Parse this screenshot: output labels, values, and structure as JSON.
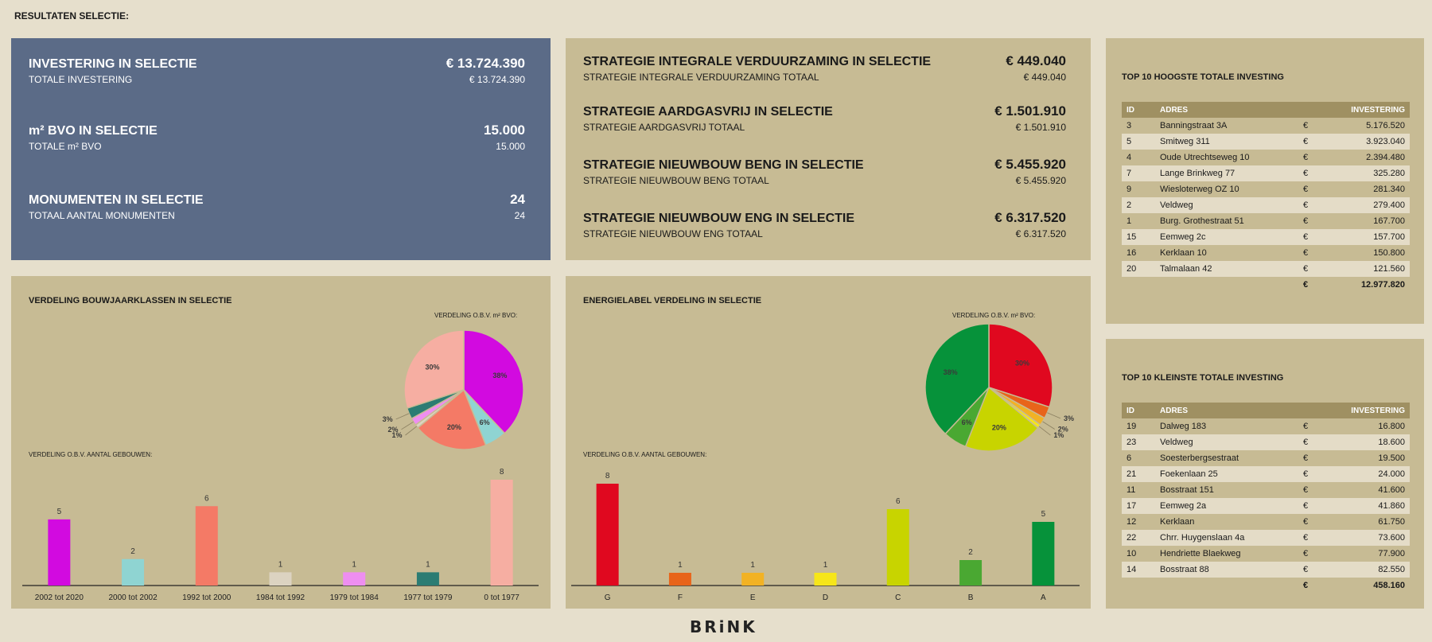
{
  "page_title": "RESULTATEN SELECTIE:",
  "kpi_panel": [
    {
      "label": "INVESTERING IN SELECTIE",
      "value": "€ 13.724.390",
      "sub_label": "TOTALE INVESTERING",
      "sub_value": "€ 13.724.390"
    },
    {
      "label": "m² BVO IN SELECTIE",
      "value": "15.000",
      "sub_label": "TOTALE m² BVO",
      "sub_value": "15.000"
    },
    {
      "label": "MONUMENTEN IN SELECTIE",
      "value": "24",
      "sub_label": "TOTAAL AANTAL MONUMENTEN",
      "sub_value": "24"
    }
  ],
  "strategy_panel": [
    {
      "label": "STRATEGIE INTEGRALE VERDUURZAMING IN SELECTIE",
      "value": "€ 449.040",
      "sub_label": "STRATEGIE INTEGRALE VERDUURZAMING TOTAAL",
      "sub_value": "€ 449.040"
    },
    {
      "label": "STRATEGIE AARDGASVRIJ IN SELECTIE",
      "value": "€ 1.501.910",
      "sub_label": "STRATEGIE AARDGASVRIJ TOTAAL",
      "sub_value": "€ 1.501.910"
    },
    {
      "label": "STRATEGIE NIEUWBOUW BENG IN SELECTIE",
      "value": "€ 5.455.920",
      "sub_label": "STRATEGIE NIEUWBOUW BENG TOTAAL",
      "sub_value": "€ 5.455.920"
    },
    {
      "label": "STRATEGIE NIEUWBOUW ENG IN SELECTIE",
      "value": "€ 6.317.520",
      "sub_label": "STRATEGIE NIEUWBOUW ENG TOTAAL",
      "sub_value": "€ 6.317.520"
    }
  ],
  "top_highest": {
    "title": "TOP 10 HOOGSTE TOTALE INVESTING",
    "headers": {
      "id": "ID",
      "address": "ADRES",
      "investment": "INVESTERING"
    },
    "currency": "€",
    "rows": [
      {
        "id": "3",
        "address": "Banningstraat 3A",
        "value": "5.176.520"
      },
      {
        "id": "5",
        "address": "Smitweg 311",
        "value": "3.923.040"
      },
      {
        "id": "4",
        "address": "Oude Utrechtseweg 10",
        "value": "2.394.480"
      },
      {
        "id": "7",
        "address": "Lange Brinkweg 77",
        "value": "325.280"
      },
      {
        "id": "9",
        "address": "Wiesloterweg OZ 10",
        "value": "281.340"
      },
      {
        "id": "2",
        "address": "Veldweg",
        "value": "279.400"
      },
      {
        "id": "1",
        "address": "Burg. Grothestraat 51",
        "value": "167.700"
      },
      {
        "id": "15",
        "address": "Eemweg 2c",
        "value": "157.700"
      },
      {
        "id": "16",
        "address": "Kerklaan 10",
        "value": "150.800"
      },
      {
        "id": "20",
        "address": "Talmalaan 42",
        "value": "121.560"
      }
    ],
    "total": "12.977.820"
  },
  "top_smallest": {
    "title": "TOP 10 KLEINSTE TOTALE INVESTING",
    "headers": {
      "id": "ID",
      "address": "ADRES",
      "investment": "INVESTERING"
    },
    "currency": "€",
    "rows": [
      {
        "id": "19",
        "address": "Dalweg 183",
        "value": "16.800"
      },
      {
        "id": "23",
        "address": "Veldweg",
        "value": "18.600"
      },
      {
        "id": "6",
        "address": "Soesterbergsestraat",
        "value": "19.500"
      },
      {
        "id": "21",
        "address": "Foekenlaan 25",
        "value": "24.000"
      },
      {
        "id": "11",
        "address": "Bosstraat 151",
        "value": "41.600"
      },
      {
        "id": "17",
        "address": "Eemweg 2a",
        "value": "41.860"
      },
      {
        "id": "12",
        "address": "Kerklaan",
        "value": "61.750"
      },
      {
        "id": "22",
        "address": "Chrr. Huygenslaan 4a",
        "value": "73.600"
      },
      {
        "id": "10",
        "address": "Hendriette Blaekweg",
        "value": "77.900"
      },
      {
        "id": "14",
        "address": "Bosstraat 88",
        "value": "82.550"
      }
    ],
    "total": "458.160"
  },
  "bouwjaar": {
    "title": "VERDELING BOUWJAARKLASSEN IN SELECTIE",
    "pie_caption": "VERDELING O.B.V. m² BVO:",
    "bar_caption": "VERDELING O.B.V. AANTAL GEBOUWEN:"
  },
  "energie": {
    "title": "ENERGIELABEL VERDELING IN SELECTIE",
    "pie_caption": "VERDELING O.B.V. m² BVO:",
    "bar_caption": "VERDELING O.B.V. AANTAL GEBOUWEN:"
  },
  "logo": "BRiNK",
  "chart_data": [
    {
      "type": "pie",
      "title": "VERDELING O.B.V. m² BVO:",
      "categories": [
        "2002 tot 2020",
        "2000 tot 2002",
        "1992 tot 2000",
        "1984 tot 1992",
        "1979 tot 1984",
        "1977 tot 1979",
        "0 tot 1977"
      ],
      "values": [
        38,
        6,
        20,
        1,
        2,
        3,
        30
      ],
      "labels": [
        "38%",
        "6%",
        "20%",
        "1%",
        "2%",
        "3%",
        "30%"
      ],
      "colors": [
        "#d20ae0",
        "#8fd4d2",
        "#f47a66",
        "#dcd3c1",
        "#ee8ef0",
        "#2b7c73",
        "#f6aea2"
      ]
    },
    {
      "type": "bar",
      "title": "VERDELING O.B.V. AANTAL GEBOUWEN:",
      "categories": [
        "2002 tot 2020",
        "2000 tot 2002",
        "1992 tot 2000",
        "1984 tot 1992",
        "1979 tot 1984",
        "1977 tot 1979",
        "0 tot 1977"
      ],
      "values": [
        5,
        2,
        6,
        1,
        1,
        1,
        8
      ],
      "colors": [
        "#d20ae0",
        "#8fd4d2",
        "#f47a66",
        "#dcd3c1",
        "#ee8ef0",
        "#2b7c73",
        "#f6aea2"
      ]
    },
    {
      "type": "pie",
      "title": "VERDELING O.B.V. m² BVO:",
      "categories": [
        "G",
        "F",
        "E",
        "D",
        "C",
        "B",
        "A"
      ],
      "values": [
        30,
        3,
        2,
        1,
        20,
        6,
        38
      ],
      "labels": [
        "30%",
        "3%",
        "2%",
        "1%",
        "20%",
        "6%",
        "38%"
      ],
      "colors": [
        "#e0081f",
        "#e8641a",
        "#f2b224",
        "#f6e61a",
        "#c8d400",
        "#4aa832",
        "#06923a"
      ]
    },
    {
      "type": "bar",
      "title": "VERDELING O.B.V. AANTAL GEBOUWEN:",
      "categories": [
        "G",
        "F",
        "E",
        "D",
        "C",
        "B",
        "A"
      ],
      "values": [
        8,
        1,
        1,
        1,
        6,
        2,
        5
      ],
      "colors": [
        "#e0081f",
        "#e8641a",
        "#f2b224",
        "#f6e61a",
        "#c8d400",
        "#4aa832",
        "#06923a"
      ]
    }
  ]
}
